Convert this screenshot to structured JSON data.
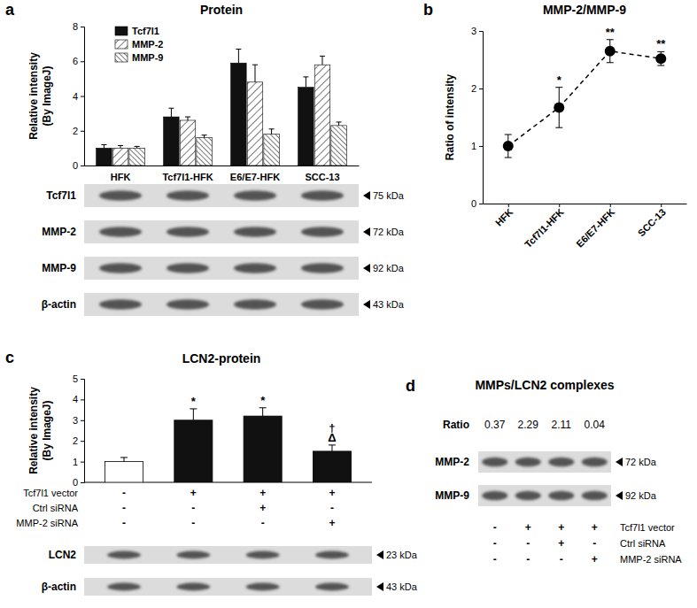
{
  "chart_data": [
    {
      "panel": "a",
      "type": "bar",
      "title": "Protein",
      "y_label": [
        "Relative intensity",
        "(By ImageJ)"
      ],
      "categories": [
        "HFK",
        "Tcf7l1-HFK",
        "E6/E7-HFK",
        "SCC-13"
      ],
      "series": [
        {
          "name": "Tcf7l1",
          "color": "#111111",
          "values": [
            1.0,
            2.8,
            5.9,
            4.5
          ],
          "errors": [
            0.2,
            0.5,
            0.8,
            0.6
          ]
        },
        {
          "name": "MMP-2",
          "color": "#333333",
          "values": [
            1.0,
            2.6,
            4.8,
            5.8
          ],
          "errors": [
            0.15,
            0.2,
            1.0,
            0.5
          ]
        },
        {
          "name": "MMP-9",
          "color": "#333333",
          "values": [
            1.0,
            1.6,
            1.8,
            2.3
          ],
          "errors": [
            0.1,
            0.15,
            0.3,
            0.2
          ]
        }
      ],
      "ylim": [
        0,
        8
      ],
      "yticks": [
        0,
        2,
        4,
        6,
        8
      ],
      "legend": "upper left",
      "blot": [
        {
          "label": "Tcf7l1",
          "size": "75 kDa"
        },
        {
          "label": "MMP-2",
          "size": "72 kDa"
        },
        {
          "label": "MMP-9",
          "size": "92 kDa"
        },
        {
          "label": "β-actin",
          "size": "43 kDa"
        }
      ]
    },
    {
      "panel": "b",
      "type": "line",
      "title": "MMP-2/MMP-9",
      "y_label": "Ratio of intensity",
      "categories": [
        "HFK",
        "Tcf7l1-HFK",
        "E6/E7-HFK",
        "SCC-13"
      ],
      "values": [
        1.0,
        1.67,
        2.65,
        2.52
      ],
      "errors": [
        0.2,
        0.35,
        0.2,
        0.12
      ],
      "significance": [
        [],
        [
          "*"
        ],
        [
          "**"
        ],
        [
          "**"
        ]
      ],
      "color": "#000000",
      "marker": "circle",
      "line_style": "dashed",
      "ylim": [
        0,
        3
      ],
      "yticks": [
        0,
        1,
        2,
        3
      ]
    },
    {
      "panel": "c",
      "type": "bar",
      "title": "LCN2-protein",
      "y_label": [
        "Relative intensity",
        "(By ImageJ)"
      ],
      "values": [
        1.0,
        3.0,
        3.2,
        1.5
      ],
      "errors": [
        0.2,
        0.55,
        0.4,
        0.3
      ],
      "colors": [
        "#ffffff",
        "#111111",
        "#111111",
        "#111111"
      ],
      "significance": [
        [],
        [
          "*"
        ],
        [
          "*"
        ],
        [
          "†",
          "Δ"
        ]
      ],
      "ylim": [
        0,
        5
      ],
      "yticks": [
        0,
        1,
        2,
        3,
        4,
        5
      ],
      "tick_labels": "y",
      "conditions": [
        {
          "label": "Tcf7l1 vector",
          "values": [
            "-",
            "+",
            "+",
            "+"
          ]
        },
        {
          "label": "Ctrl siRNA",
          "values": [
            "-",
            "-",
            "+",
            "-"
          ]
        },
        {
          "label": "MMP-2 siRNA",
          "values": [
            "-",
            "-",
            "-",
            "+"
          ]
        }
      ],
      "blot": [
        {
          "label": "LCN2",
          "size": "23 kDa"
        },
        {
          "label": "β-actin",
          "size": "43 kDa"
        }
      ]
    },
    {
      "panel": "d",
      "type": "blot",
      "title": "MMPs/LCN2 complexes",
      "ratio_label": "Ratio",
      "ratios": [
        0.37,
        2.29,
        2.11,
        0.04
      ],
      "blot": [
        {
          "label": "MMP-2",
          "size": "72 kDa"
        },
        {
          "label": "MMP-9",
          "size": "92 kDa"
        }
      ],
      "conditions": [
        {
          "label": "Tcf7l1 vector",
          "values": [
            "-",
            "+",
            "+",
            "+"
          ]
        },
        {
          "label": "Ctrl siRNA",
          "values": [
            "-",
            "-",
            "+",
            "-"
          ]
        },
        {
          "label": "MMP-2 siRNA",
          "values": [
            "-",
            "-",
            "-",
            "+"
          ]
        }
      ]
    }
  ]
}
